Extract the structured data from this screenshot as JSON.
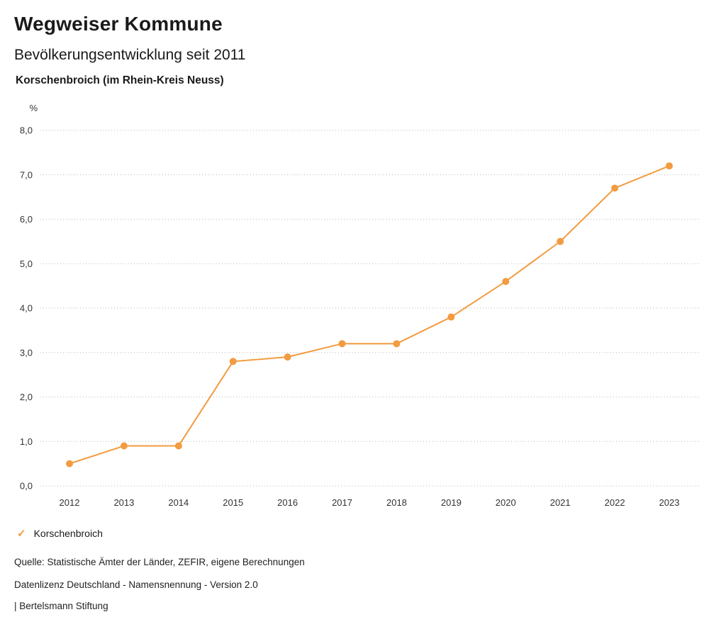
{
  "app_title": "Wegweiser Kommune",
  "chart_data": {
    "type": "line",
    "title": "Bevölkerungsentwicklung seit 2011",
    "subtitle": "Korschenbroich (im Rhein-Kreis Neuss)",
    "unit_label": "%",
    "x": [
      "2012",
      "2013",
      "2014",
      "2015",
      "2016",
      "2017",
      "2018",
      "2019",
      "2020",
      "2021",
      "2022",
      "2023"
    ],
    "series": [
      {
        "name": "Korschenbroich",
        "color": "#f39b40",
        "values": [
          0.5,
          0.9,
          0.9,
          2.8,
          2.9,
          3.2,
          3.2,
          3.8,
          4.6,
          5.5,
          6.7,
          7.2
        ]
      }
    ],
    "ylim": [
      0,
      8
    ],
    "yticks": [
      {
        "value": 0,
        "label": "0,0"
      },
      {
        "value": 1,
        "label": "1,0"
      },
      {
        "value": 2,
        "label": "2,0"
      },
      {
        "value": 3,
        "label": "3,0"
      },
      {
        "value": 4,
        "label": "4,0"
      },
      {
        "value": 5,
        "label": "5,0"
      },
      {
        "value": 6,
        "label": "6,0"
      },
      {
        "value": 7,
        "label": "7,0"
      },
      {
        "value": 8,
        "label": "8,0"
      }
    ],
    "grid": "horizontal-dotted",
    "grid_color": "#b8b8b8",
    "tick_color": "#333333",
    "legend_position": "bottom-left",
    "legend_check_icon": "✓"
  },
  "footer": {
    "source": "Quelle: Statistische Ämter der Länder, ZEFIR, eigene Berechnungen",
    "license": "Datenlizenz Deutschland - Namensnennung - Version 2.0",
    "attribution": "| Bertelsmann Stiftung"
  }
}
